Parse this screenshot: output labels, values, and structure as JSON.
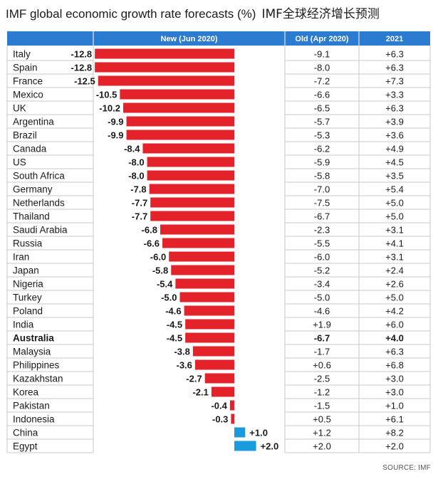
{
  "title": "IMF global economic growth rate forecasts (%)",
  "title_cn": "IMF全球经济增长预测",
  "source": "SOURCE: IMF",
  "colors": {
    "header_bg": "#2b7bd1",
    "negative": "#e3222a",
    "positive": "#1a9bdc",
    "grid": "#c9c9c9",
    "text": "#1a1a1a"
  },
  "chart_data": {
    "type": "bar",
    "orientation": "horizontal",
    "columns": [
      "New (Jun 2020)",
      "Old (Apr 2020)",
      "2021"
    ],
    "highlight": "Australia",
    "rows": [
      {
        "country": "Italy",
        "new": -12.8,
        "new_label": "-12.8",
        "old": "-9.1",
        "y2021": "+6.3"
      },
      {
        "country": "Spain",
        "new": -12.8,
        "new_label": "-12.8",
        "old": "-8.0",
        "y2021": "+6.3"
      },
      {
        "country": "France",
        "new": -12.5,
        "new_label": "-12.5",
        "old": "-7.2",
        "y2021": "+7.3"
      },
      {
        "country": "Mexico",
        "new": -10.5,
        "new_label": "-10.5",
        "old": "-6.6",
        "y2021": "+3.3"
      },
      {
        "country": "UK",
        "new": -10.2,
        "new_label": "-10.2",
        "old": "-6.5",
        "y2021": "+6.3"
      },
      {
        "country": "Argentina",
        "new": -9.9,
        "new_label": "-9.9",
        "old": "-5.7",
        "y2021": "+3.9"
      },
      {
        "country": "Brazil",
        "new": -9.9,
        "new_label": "-9.9",
        "old": "-5.3",
        "y2021": "+3.6"
      },
      {
        "country": "Canada",
        "new": -8.4,
        "new_label": "-8.4",
        "old": "-6.2",
        "y2021": "+4.9"
      },
      {
        "country": "US",
        "new": -8.0,
        "new_label": "-8.0",
        "old": "-5.9",
        "y2021": "+4.5"
      },
      {
        "country": "South Africa",
        "new": -8.0,
        "new_label": "-8.0",
        "old": "-5.8",
        "y2021": "+3.5"
      },
      {
        "country": "Germany",
        "new": -7.8,
        "new_label": "-7.8",
        "old": "-7.0",
        "y2021": "+5.4"
      },
      {
        "country": "Netherlands",
        "new": -7.7,
        "new_label": "-7.7",
        "old": "-7.5",
        "y2021": "+5.0"
      },
      {
        "country": "Thailand",
        "new": -7.7,
        "new_label": "-7.7",
        "old": "-6.7",
        "y2021": "+5.0"
      },
      {
        "country": "Saudi Arabia",
        "new": -6.8,
        "new_label": "-6.8",
        "old": "-2.3",
        "y2021": "+3.1"
      },
      {
        "country": "Russia",
        "new": -6.6,
        "new_label": "-6.6",
        "old": "-5.5",
        "y2021": "+4.1"
      },
      {
        "country": "Iran",
        "new": -6.0,
        "new_label": "-6.0",
        "old": "-6.0",
        "y2021": "+3.1"
      },
      {
        "country": "Japan",
        "new": -5.8,
        "new_label": "-5.8",
        "old": "-5.2",
        "y2021": "+2.4"
      },
      {
        "country": "Nigeria",
        "new": -5.4,
        "new_label": "-5.4",
        "old": "-3.4",
        "y2021": "+2.6"
      },
      {
        "country": "Turkey",
        "new": -5.0,
        "new_label": "-5.0",
        "old": "-5.0",
        "y2021": "+5.0"
      },
      {
        "country": "Poland",
        "new": -4.6,
        "new_label": "-4.6",
        "old": "-4.6",
        "y2021": "+4.2"
      },
      {
        "country": "India",
        "new": -4.5,
        "new_label": "-4.5",
        "old": "+1.9",
        "y2021": "+6.0"
      },
      {
        "country": "Australia",
        "new": -4.5,
        "new_label": "-4.5",
        "old": "-6.7",
        "y2021": "+4.0"
      },
      {
        "country": "Malaysia",
        "new": -3.8,
        "new_label": "-3.8",
        "old": "-1.7",
        "y2021": "+6.3"
      },
      {
        "country": "Philippines",
        "new": -3.6,
        "new_label": "-3.6",
        "old": "+0.6",
        "y2021": "+6.8"
      },
      {
        "country": "Kazakhstan",
        "new": -2.7,
        "new_label": "-2.7",
        "old": "-2.5",
        "y2021": "+3.0"
      },
      {
        "country": "Korea",
        "new": -2.1,
        "new_label": "-2.1",
        "old": "-1.2",
        "y2021": "+3.0"
      },
      {
        "country": "Pakistan",
        "new": -0.4,
        "new_label": "-0.4",
        "old": "-1.5",
        "y2021": "+1.0"
      },
      {
        "country": "Indonesia",
        "new": -0.3,
        "new_label": "-0.3",
        "old": "+0.5",
        "y2021": "+6.1"
      },
      {
        "country": "China",
        "new": 1.0,
        "new_label": "+1.0",
        "old": "+1.2",
        "y2021": "+8.2"
      },
      {
        "country": "Egypt",
        "new": 2.0,
        "new_label": "+2.0",
        "old": "+2.0",
        "y2021": "+2.0"
      }
    ]
  }
}
